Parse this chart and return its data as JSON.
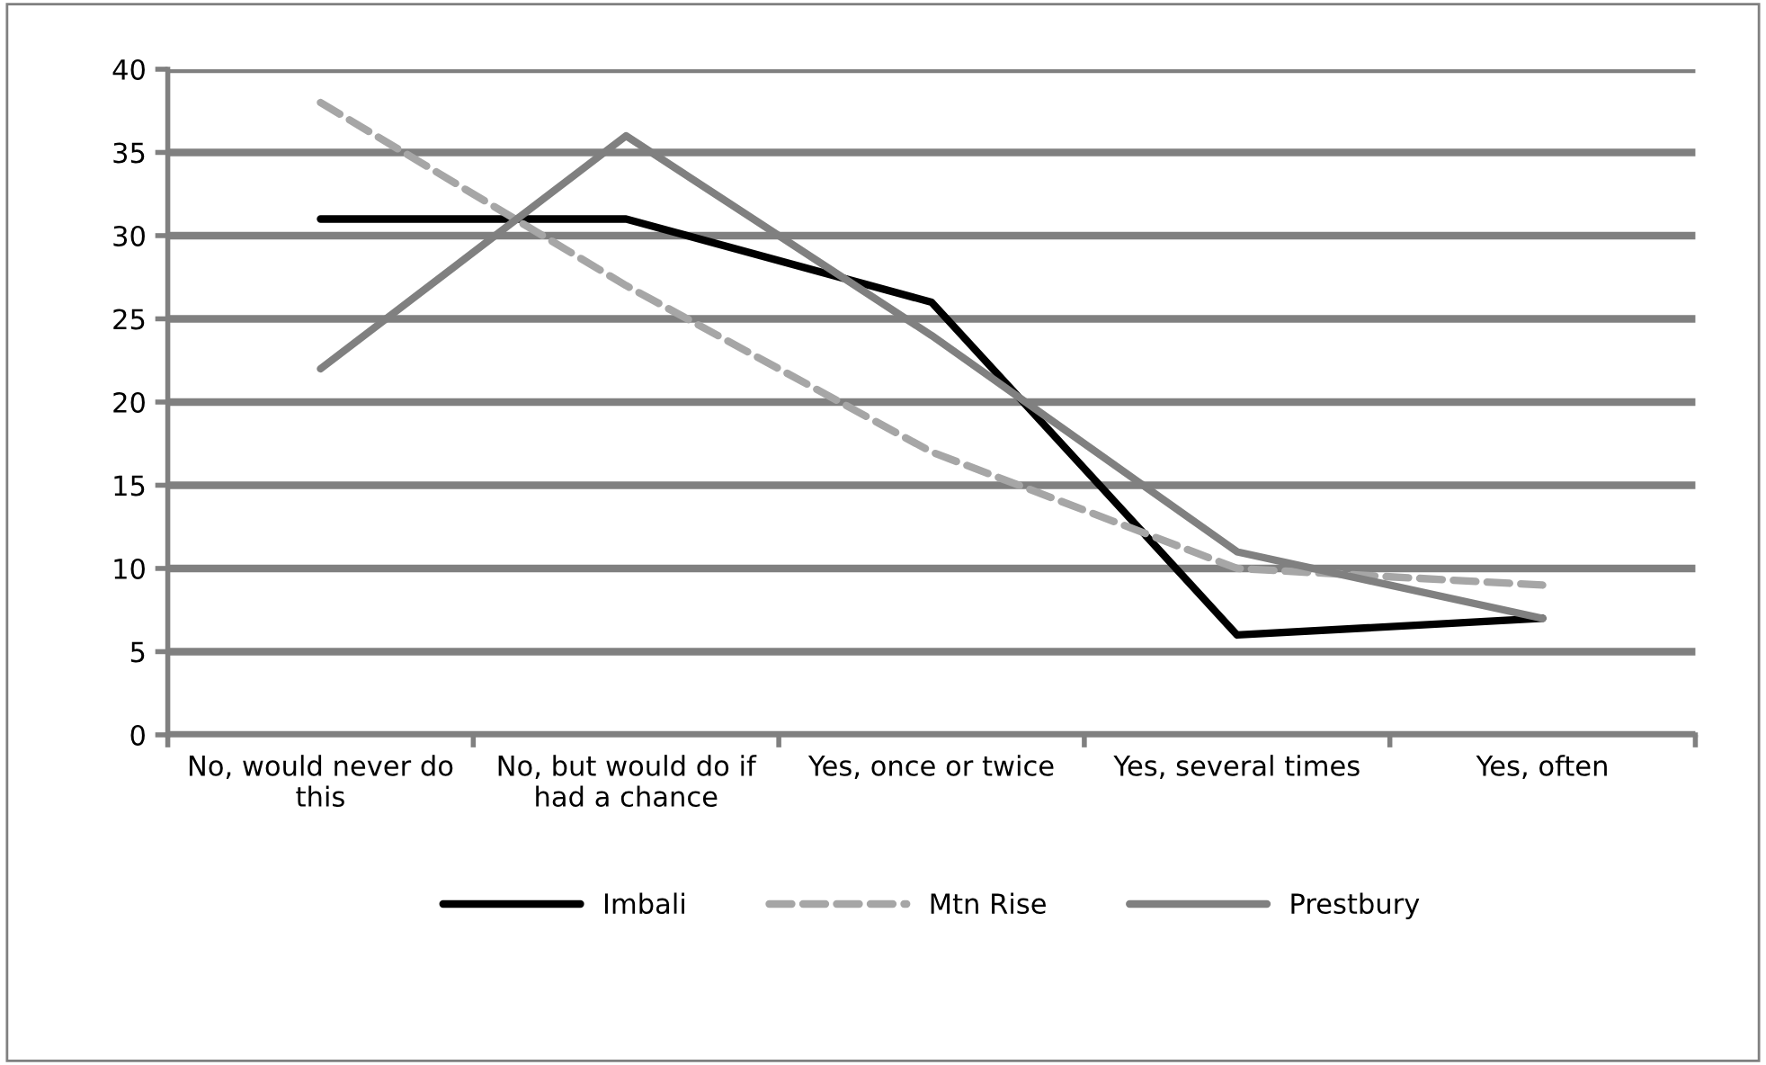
{
  "chart_data": {
    "type": "line",
    "categories": [
      "No, would never do this",
      "No, but would do if had a chance",
      "Yes, once or twice",
      "Yes, several times",
      "Yes, often"
    ],
    "series": [
      {
        "name": "Imbali",
        "color": "#000000",
        "line_style": "solid",
        "values": [
          31,
          31,
          26,
          6,
          7
        ]
      },
      {
        "name": "Mtn Rise",
        "color": "#a6a6a6",
        "line_style": "dashed",
        "values": [
          38,
          27,
          17,
          10,
          9
        ]
      },
      {
        "name": "Prestbury",
        "color": "#808080",
        "line_style": "solid",
        "values": [
          22,
          36,
          24,
          11,
          7
        ]
      }
    ],
    "ylim": [
      0,
      40
    ],
    "yticks": [
      0,
      5,
      10,
      15,
      20,
      25,
      30,
      35,
      40
    ],
    "grid": "y",
    "legend": "bottom",
    "marker": "none"
  }
}
